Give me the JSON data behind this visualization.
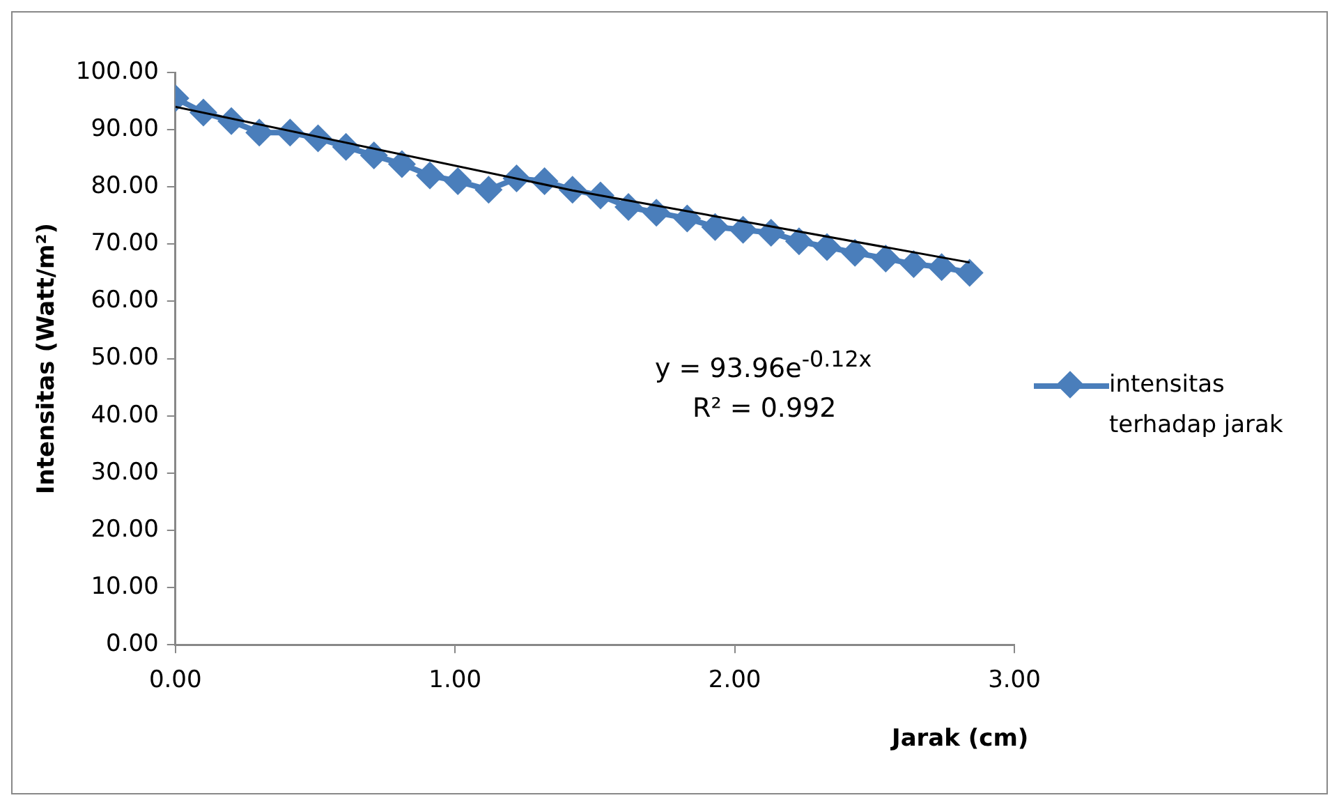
{
  "chart_data": {
    "type": "line",
    "xlabel": "Jarak (cm)",
    "ylabel": "Intensitas (Watt/m²)",
    "xlim": [
      0,
      3
    ],
    "xticks": [
      {
        "value": 0,
        "label": "0.00"
      },
      {
        "value": 1,
        "label": "1.00"
      },
      {
        "value": 2,
        "label": "2.00"
      },
      {
        "value": 3,
        "label": "3.00"
      }
    ],
    "ylim": [
      0,
      100
    ],
    "yticks": [
      {
        "value": 0,
        "label": "0.00"
      },
      {
        "value": 10,
        "label": "10.00"
      },
      {
        "value": 20,
        "label": "20.00"
      },
      {
        "value": 30,
        "label": "30.00"
      },
      {
        "value": 40,
        "label": "40.00"
      },
      {
        "value": 50,
        "label": "50.00"
      },
      {
        "value": 60,
        "label": "60.00"
      },
      {
        "value": 70,
        "label": "70.00"
      },
      {
        "value": 80,
        "label": "80.00"
      },
      {
        "value": 90,
        "label": "90.00"
      },
      {
        "value": 100,
        "label": "100.00"
      }
    ],
    "grid": false,
    "legend": "right",
    "marker": "diamond",
    "series": [
      {
        "name": "intensitas terhadap jarak",
        "color": "#4a7ebb",
        "x": [
          0,
          0.1,
          0.2,
          0.3,
          0.41,
          0.51,
          0.61,
          0.71,
          0.81,
          0.91,
          1.01,
          1.12,
          1.22,
          1.32,
          1.42,
          1.52,
          1.62,
          1.72,
          1.83,
          1.93,
          2.03,
          2.13,
          2.23,
          2.33,
          2.43,
          2.54,
          2.64,
          2.74,
          2.84
        ],
        "values": [
          95.5,
          93,
          91.5,
          89.5,
          89.5,
          88.5,
          87,
          85.5,
          84,
          82,
          81,
          79.5,
          81.5,
          81,
          79.5,
          78.5,
          76.5,
          75.5,
          74.5,
          73,
          72.5,
          72,
          70.5,
          69.5,
          68.5,
          67.5,
          66.5,
          66,
          65
        ]
      },
      {
        "color": "#000000",
        "marker": "none",
        "x": [
          0,
          1.42,
          2.84
        ],
        "values": [
          94,
          79.4,
          66.8
        ]
      }
    ],
    "annotations": [
      "y = 93.96e$^{-0.12x}$",
      "R² = 0.992"
    ]
  }
}
